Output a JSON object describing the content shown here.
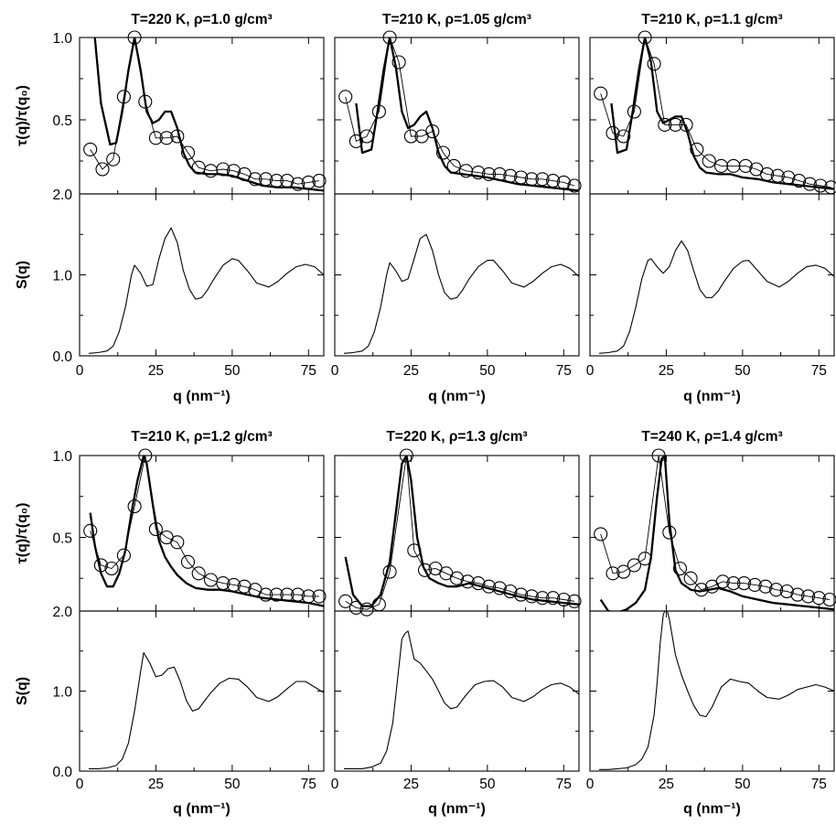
{
  "chart_data": {
    "type": "line",
    "axis_labels": {
      "tau_ylabel": "τ(q)/τ(q₀)",
      "sq_ylabel": "S(q)",
      "xlabel": "q (nm⁻¹)"
    },
    "xlim": [
      0,
      80
    ],
    "x_ticks": [
      "0",
      "25",
      "50",
      "75"
    ],
    "tau_ylim": [
      0.05,
      1.0
    ],
    "tau_ticks": [
      "0.5",
      "1.0"
    ],
    "sq_ylim": [
      0,
      2.0
    ],
    "sq_ticks": [
      "0.0",
      "1.0",
      "2.0"
    ],
    "panels": [
      {
        "title": "T=220 K, ρ=1.0 g/cm³",
        "tau_circles": {
          "x": [
            3.5,
            7.5,
            11,
            14.5,
            18,
            21.5,
            25,
            28.5,
            32,
            35.5,
            39,
            43,
            47,
            50.5,
            54,
            57.5,
            61,
            64.5,
            68,
            71.5,
            75,
            78.5
          ],
          "y": [
            0.32,
            0.2,
            0.26,
            0.64,
            1.0,
            0.61,
            0.39,
            0.39,
            0.4,
            0.3,
            0.21,
            0.19,
            0.2,
            0.19,
            0.17,
            0.14,
            0.14,
            0.13,
            0.13,
            0.11,
            0.12,
            0.13
          ]
        },
        "tau_curve": {
          "x": [
            5,
            7,
            10,
            12,
            14,
            16,
            18,
            20,
            22,
            24,
            26,
            28,
            30,
            32,
            34,
            36,
            38,
            42,
            46,
            50,
            55,
            60,
            65,
            70,
            75,
            80
          ],
          "y": [
            1.0,
            0.6,
            0.35,
            0.36,
            0.55,
            0.8,
            1.0,
            0.8,
            0.55,
            0.48,
            0.5,
            0.55,
            0.55,
            0.45,
            0.3,
            0.22,
            0.18,
            0.17,
            0.17,
            0.16,
            0.13,
            0.1,
            0.09,
            0.09,
            0.08,
            0.07
          ]
        },
        "sq": {
          "x": [
            3,
            6,
            9,
            11,
            13,
            15,
            17,
            18,
            20,
            22,
            24,
            26,
            28,
            30,
            32,
            34,
            36,
            38,
            40,
            42,
            44,
            47,
            50,
            52,
            55,
            58,
            62,
            65,
            68,
            71,
            74,
            77,
            80
          ],
          "y": [
            0.03,
            0.04,
            0.06,
            0.12,
            0.3,
            0.6,
            1.0,
            1.12,
            1.02,
            0.86,
            0.88,
            1.2,
            1.45,
            1.58,
            1.4,
            1.05,
            0.82,
            0.7,
            0.72,
            0.82,
            0.95,
            1.12,
            1.2,
            1.18,
            1.05,
            0.9,
            0.85,
            0.92,
            1.02,
            1.1,
            1.13,
            1.1,
            1.0
          ]
        }
      },
      {
        "title": "T=210 K, ρ=1.05 g/cm³",
        "tau_circles": {
          "x": [
            3.5,
            7,
            10.5,
            14.5,
            18,
            21,
            25,
            28.5,
            32,
            35.5,
            39,
            43,
            47,
            50.5,
            54,
            57.5,
            61,
            64.5,
            68,
            71.5,
            75,
            78.5
          ],
          "y": [
            0.64,
            0.37,
            0.4,
            0.55,
            1.0,
            0.85,
            0.4,
            0.4,
            0.43,
            0.3,
            0.22,
            0.19,
            0.18,
            0.17,
            0.17,
            0.16,
            0.15,
            0.14,
            0.14,
            0.13,
            0.12,
            0.1
          ]
        },
        "tau_curve": {
          "x": [
            7,
            9,
            12,
            14,
            16,
            18,
            20,
            22,
            24,
            26,
            28,
            30,
            32,
            34,
            36,
            38,
            42,
            46,
            50,
            55,
            60,
            65,
            70,
            75,
            80
          ],
          "y": [
            0.6,
            0.3,
            0.32,
            0.55,
            0.8,
            1.0,
            0.82,
            0.55,
            0.45,
            0.47,
            0.52,
            0.55,
            0.45,
            0.3,
            0.22,
            0.18,
            0.17,
            0.16,
            0.15,
            0.13,
            0.11,
            0.1,
            0.09,
            0.08,
            0.07
          ]
        },
        "sq": {
          "x": [
            3,
            6,
            9,
            11,
            13,
            15,
            17,
            18,
            20,
            22,
            24,
            26,
            28,
            30,
            32,
            34,
            36,
            38,
            40,
            42,
            44,
            47,
            50,
            52,
            55,
            58,
            62,
            65,
            68,
            71,
            74,
            77,
            80
          ],
          "y": [
            0.03,
            0.04,
            0.06,
            0.12,
            0.3,
            0.6,
            1.0,
            1.15,
            1.05,
            0.92,
            0.95,
            1.2,
            1.45,
            1.5,
            1.3,
            1.0,
            0.78,
            0.7,
            0.72,
            0.82,
            0.95,
            1.1,
            1.18,
            1.18,
            1.05,
            0.9,
            0.85,
            0.92,
            1.02,
            1.1,
            1.13,
            1.08,
            0.98
          ]
        }
      },
      {
        "title": "T=210 K, ρ=1.1 g/cm³",
        "tau_circles": {
          "x": [
            3.5,
            7.5,
            11,
            14.5,
            18,
            21,
            24.5,
            28,
            31.5,
            35,
            39,
            43,
            47,
            51,
            54.5,
            58,
            61.5,
            65,
            68.5,
            72,
            75.5,
            79
          ],
          "y": [
            0.66,
            0.42,
            0.4,
            0.55,
            1.0,
            0.84,
            0.47,
            0.47,
            0.47,
            0.32,
            0.25,
            0.22,
            0.22,
            0.22,
            0.2,
            0.17,
            0.16,
            0.15,
            0.13,
            0.11,
            0.1,
            0.09
          ]
        },
        "tau_curve": {
          "x": [
            7,
            9,
            12,
            14,
            16,
            18,
            20,
            22,
            24,
            26,
            28,
            30,
            32,
            34,
            36,
            38,
            42,
            46,
            50,
            55,
            60,
            65,
            70,
            75,
            80
          ],
          "y": [
            0.6,
            0.3,
            0.32,
            0.55,
            0.8,
            1.0,
            0.85,
            0.55,
            0.48,
            0.5,
            0.52,
            0.52,
            0.42,
            0.28,
            0.21,
            0.18,
            0.17,
            0.17,
            0.15,
            0.14,
            0.12,
            0.11,
            0.1,
            0.09,
            0.08
          ]
        },
        "sq": {
          "x": [
            3,
            6,
            9,
            11,
            13,
            15,
            17,
            19,
            20,
            22,
            24,
            26,
            28,
            30,
            32,
            34,
            36,
            38,
            40,
            42,
            44,
            47,
            50,
            52,
            55,
            58,
            62,
            65,
            68,
            71,
            74,
            77,
            80
          ],
          "y": [
            0.03,
            0.04,
            0.06,
            0.12,
            0.3,
            0.6,
            0.95,
            1.18,
            1.2,
            1.1,
            1.02,
            1.1,
            1.3,
            1.42,
            1.3,
            1.05,
            0.82,
            0.72,
            0.72,
            0.8,
            0.92,
            1.08,
            1.17,
            1.18,
            1.05,
            0.92,
            0.85,
            0.92,
            1.02,
            1.1,
            1.12,
            1.08,
            0.98
          ]
        }
      },
      {
        "title": "T=210 K, ρ=1.2 g/cm³",
        "tau_circles": {
          "x": [
            3.5,
            7,
            10.5,
            14.5,
            18,
            21.5,
            25,
            28.5,
            32,
            35.5,
            39,
            43,
            47,
            50.5,
            54,
            57.5,
            61,
            64.5,
            68,
            71.5,
            75,
            78.5
          ],
          "y": [
            0.54,
            0.33,
            0.31,
            0.39,
            0.69,
            1.0,
            0.55,
            0.5,
            0.47,
            0.35,
            0.28,
            0.24,
            0.22,
            0.21,
            0.2,
            0.18,
            0.15,
            0.15,
            0.15,
            0.15,
            0.14,
            0.14
          ]
        },
        "tau_curve": {
          "x": [
            3.5,
            5,
            7,
            9,
            11,
            13,
            15,
            17,
            19,
            21,
            22,
            24,
            26,
            28,
            30,
            32,
            35,
            38,
            42,
            46,
            50,
            55,
            60,
            65,
            70,
            75,
            80
          ],
          "y": [
            0.65,
            0.45,
            0.28,
            0.2,
            0.2,
            0.28,
            0.42,
            0.65,
            0.85,
            1.0,
            0.95,
            0.7,
            0.48,
            0.38,
            0.32,
            0.27,
            0.22,
            0.19,
            0.18,
            0.18,
            0.17,
            0.15,
            0.13,
            0.12,
            0.11,
            0.1,
            0.08
          ]
        },
        "sq": {
          "x": [
            3,
            6,
            9,
            12,
            14,
            16,
            18,
            20,
            21,
            23,
            25,
            27,
            29,
            31,
            33,
            35,
            37,
            39,
            41,
            43,
            46,
            49,
            52,
            55,
            58,
            62,
            65,
            68,
            71,
            74,
            77,
            80
          ],
          "y": [
            0.03,
            0.03,
            0.04,
            0.07,
            0.15,
            0.35,
            0.75,
            1.25,
            1.48,
            1.35,
            1.18,
            1.2,
            1.28,
            1.3,
            1.12,
            0.88,
            0.75,
            0.78,
            0.88,
            0.98,
            1.1,
            1.16,
            1.15,
            1.05,
            0.92,
            0.87,
            0.93,
            1.03,
            1.12,
            1.12,
            1.05,
            0.98
          ]
        }
      },
      {
        "title": "T=220 K, ρ=1.3 g/cm³",
        "tau_circles": {
          "x": [
            3.5,
            7,
            10.5,
            14.5,
            18,
            23.5,
            26,
            29.5,
            33,
            36.5,
            40,
            43.5,
            47,
            50.5,
            54,
            57.5,
            61,
            64.5,
            68,
            71.5,
            75,
            78.5
          ],
          "y": [
            0.11,
            0.07,
            0.06,
            0.09,
            0.29,
            1.0,
            0.42,
            0.3,
            0.31,
            0.28,
            0.25,
            0.23,
            0.22,
            0.2,
            0.19,
            0.17,
            0.15,
            0.14,
            0.13,
            0.13,
            0.12,
            0.11
          ]
        },
        "tau_curve": {
          "x": [
            3.5,
            6,
            9,
            12,
            15,
            18,
            20,
            22,
            23.5,
            25,
            27,
            29,
            31,
            34,
            37,
            40,
            44,
            48,
            52,
            56,
            60,
            65,
            70,
            75,
            80
          ],
          "y": [
            0.38,
            0.15,
            0.08,
            0.08,
            0.15,
            0.35,
            0.65,
            0.95,
            1.0,
            0.85,
            0.5,
            0.32,
            0.25,
            0.22,
            0.2,
            0.2,
            0.22,
            0.2,
            0.18,
            0.16,
            0.14,
            0.12,
            0.11,
            0.1,
            0.09
          ]
        },
        "sq": {
          "x": [
            3,
            6,
            9,
            12,
            15,
            17,
            19,
            21,
            22,
            23,
            24,
            26,
            28,
            30,
            32,
            34,
            36,
            38,
            40,
            43,
            46,
            49,
            52,
            55,
            58,
            62,
            65,
            68,
            71,
            74,
            77,
            80
          ],
          "y": [
            0.03,
            0.03,
            0.03,
            0.05,
            0.1,
            0.25,
            0.6,
            1.3,
            1.65,
            1.72,
            1.75,
            1.4,
            1.35,
            1.25,
            1.15,
            1.0,
            0.85,
            0.78,
            0.8,
            0.95,
            1.08,
            1.12,
            1.13,
            1.05,
            0.92,
            0.87,
            0.93,
            1.02,
            1.08,
            1.1,
            1.05,
            0.96
          ]
        }
      },
      {
        "title": "T=240 K, ρ=1.4 g/cm³",
        "tau_circles": {
          "x": [
            3.5,
            7.5,
            11,
            14.5,
            18,
            22.5,
            26,
            29.5,
            33,
            36.5,
            40,
            43.5,
            47,
            50.5,
            54,
            57.5,
            61,
            64.5,
            68,
            71.5,
            75,
            78.5
          ],
          "y": [
            0.52,
            0.28,
            0.29,
            0.33,
            0.37,
            1.0,
            0.53,
            0.31,
            0.25,
            0.18,
            0.2,
            0.23,
            0.22,
            0.22,
            0.21,
            0.2,
            0.18,
            0.17,
            0.15,
            0.14,
            0.13,
            0.12
          ]
        },
        "tau_curve": {
          "x": [
            3.5,
            6,
            9,
            12,
            15,
            18,
            20,
            22,
            23.5,
            24.5,
            26,
            28,
            30,
            33,
            36,
            39,
            42,
            46,
            50,
            55,
            60,
            65,
            70,
            75,
            80
          ],
          "y": [
            0.12,
            0.05,
            0.04,
            0.06,
            0.1,
            0.18,
            0.38,
            0.75,
            0.98,
            1.0,
            0.6,
            0.3,
            0.22,
            0.18,
            0.17,
            0.18,
            0.19,
            0.17,
            0.14,
            0.12,
            0.1,
            0.09,
            0.08,
            0.07,
            0.06
          ]
        },
        "sq": {
          "x": [
            3,
            6,
            9,
            12,
            15,
            17,
            19,
            21,
            22,
            23,
            24,
            25,
            26,
            28,
            30,
            32,
            34,
            36,
            38,
            40,
            43,
            46,
            49,
            52,
            55,
            58,
            62,
            65,
            68,
            71,
            74,
            77,
            80
          ],
          "y": [
            0.02,
            0.02,
            0.03,
            0.04,
            0.08,
            0.15,
            0.3,
            0.7,
            1.1,
            1.6,
            1.95,
            2.05,
            1.9,
            1.45,
            1.2,
            1.0,
            0.82,
            0.7,
            0.68,
            0.8,
            1.05,
            1.15,
            1.12,
            1.1,
            1.0,
            0.92,
            0.9,
            0.95,
            1.02,
            1.05,
            1.08,
            1.05,
            1.0
          ]
        }
      }
    ]
  }
}
